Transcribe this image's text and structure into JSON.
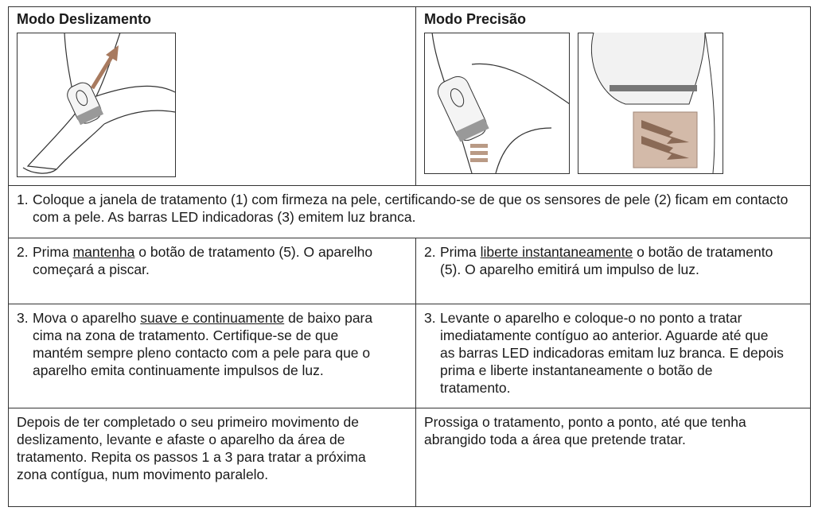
{
  "header": [
    "Modo Deslizamento",
    "Modo Precisão"
  ],
  "step_1": {
    "number": "1.",
    "text": "Coloque a janela de tratamento (1) com firmeza na pele, certificando-se de que os sensores de pele (2) ficam em contacto com a pele. As barras LED indicadoras (3) emitem luz branca."
  },
  "step_2": [
    {
      "number": "2.",
      "parts": [
        "Prima ",
        "mantenha",
        " o botão de tratamento (5). O aparelho começará a piscar."
      ]
    },
    {
      "number": "2.",
      "parts": [
        "Prima ",
        "liberte instantaneamente",
        " o botão de tratamento (5). O aparelho emitirá um impulso de luz."
      ]
    }
  ],
  "step_3": [
    {
      "number": "3.",
      "parts": [
        "Mova o aparelho ",
        "suave e continuamente",
        " de baixo para cima na zona de tratamento. Certifique-se de que mantém sempre pleno contacto com a pele para que o aparelho emita continuamente impulsos de luz."
      ]
    },
    {
      "number": "3.",
      "parts": [
        "Levante o aparelho e coloque-o no ponto a tratar imediatamente contíguo ao anterior. Aguarde até que as barras LED indicadoras emitam luz branca. E depois prima e liberte instantaneamente o botão de tratamento."
      ]
    }
  ],
  "final": [
    "Depois de ter completado o seu primeiro movimento de deslizamento, levante e afaste o aparelho da área de tratamento. Repita os passos 1 a 3 para tratar a próxima zona contígua, num movimento paralelo.",
    "Prossiga o tratamento, ponto a ponto, até que tenha abrangido toda a área que pretende tratar."
  ]
}
